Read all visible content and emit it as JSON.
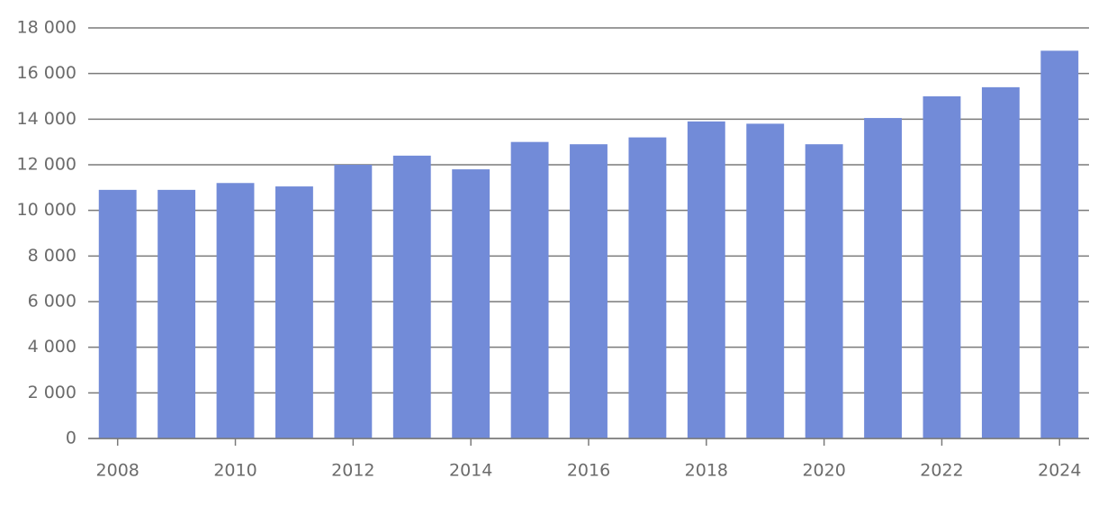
{
  "chart_data": {
    "type": "bar",
    "categories": [
      "2008",
      null,
      "2010",
      null,
      "2012",
      null,
      "2014",
      null,
      "2016",
      null,
      "2018",
      null,
      "2020",
      null,
      "2022",
      null,
      "2024"
    ],
    "values": [
      10900,
      10900,
      11200,
      11050,
      12000,
      12400,
      11800,
      13000,
      12900,
      13200,
      13900,
      13800,
      12900,
      14050,
      15000,
      15400,
      17000
    ],
    "color": "#728bd8",
    "ylim": [
      0,
      18000
    ],
    "yticks": [
      0,
      {
        "value": 2000,
        "label": "2 000"
      },
      {
        "value": 4000,
        "label": "4 000"
      },
      {
        "value": 6000,
        "label": "6 000"
      },
      {
        "value": 8000,
        "label": "8 000"
      },
      {
        "value": 10000,
        "label": "10 000"
      },
      {
        "value": 12000,
        "label": "12 000"
      },
      {
        "value": 14000,
        "label": "14 000"
      },
      {
        "value": 16000,
        "label": "16 000"
      },
      {
        "value": 18000,
        "label": "18 000"
      }
    ],
    "grid": true
  }
}
